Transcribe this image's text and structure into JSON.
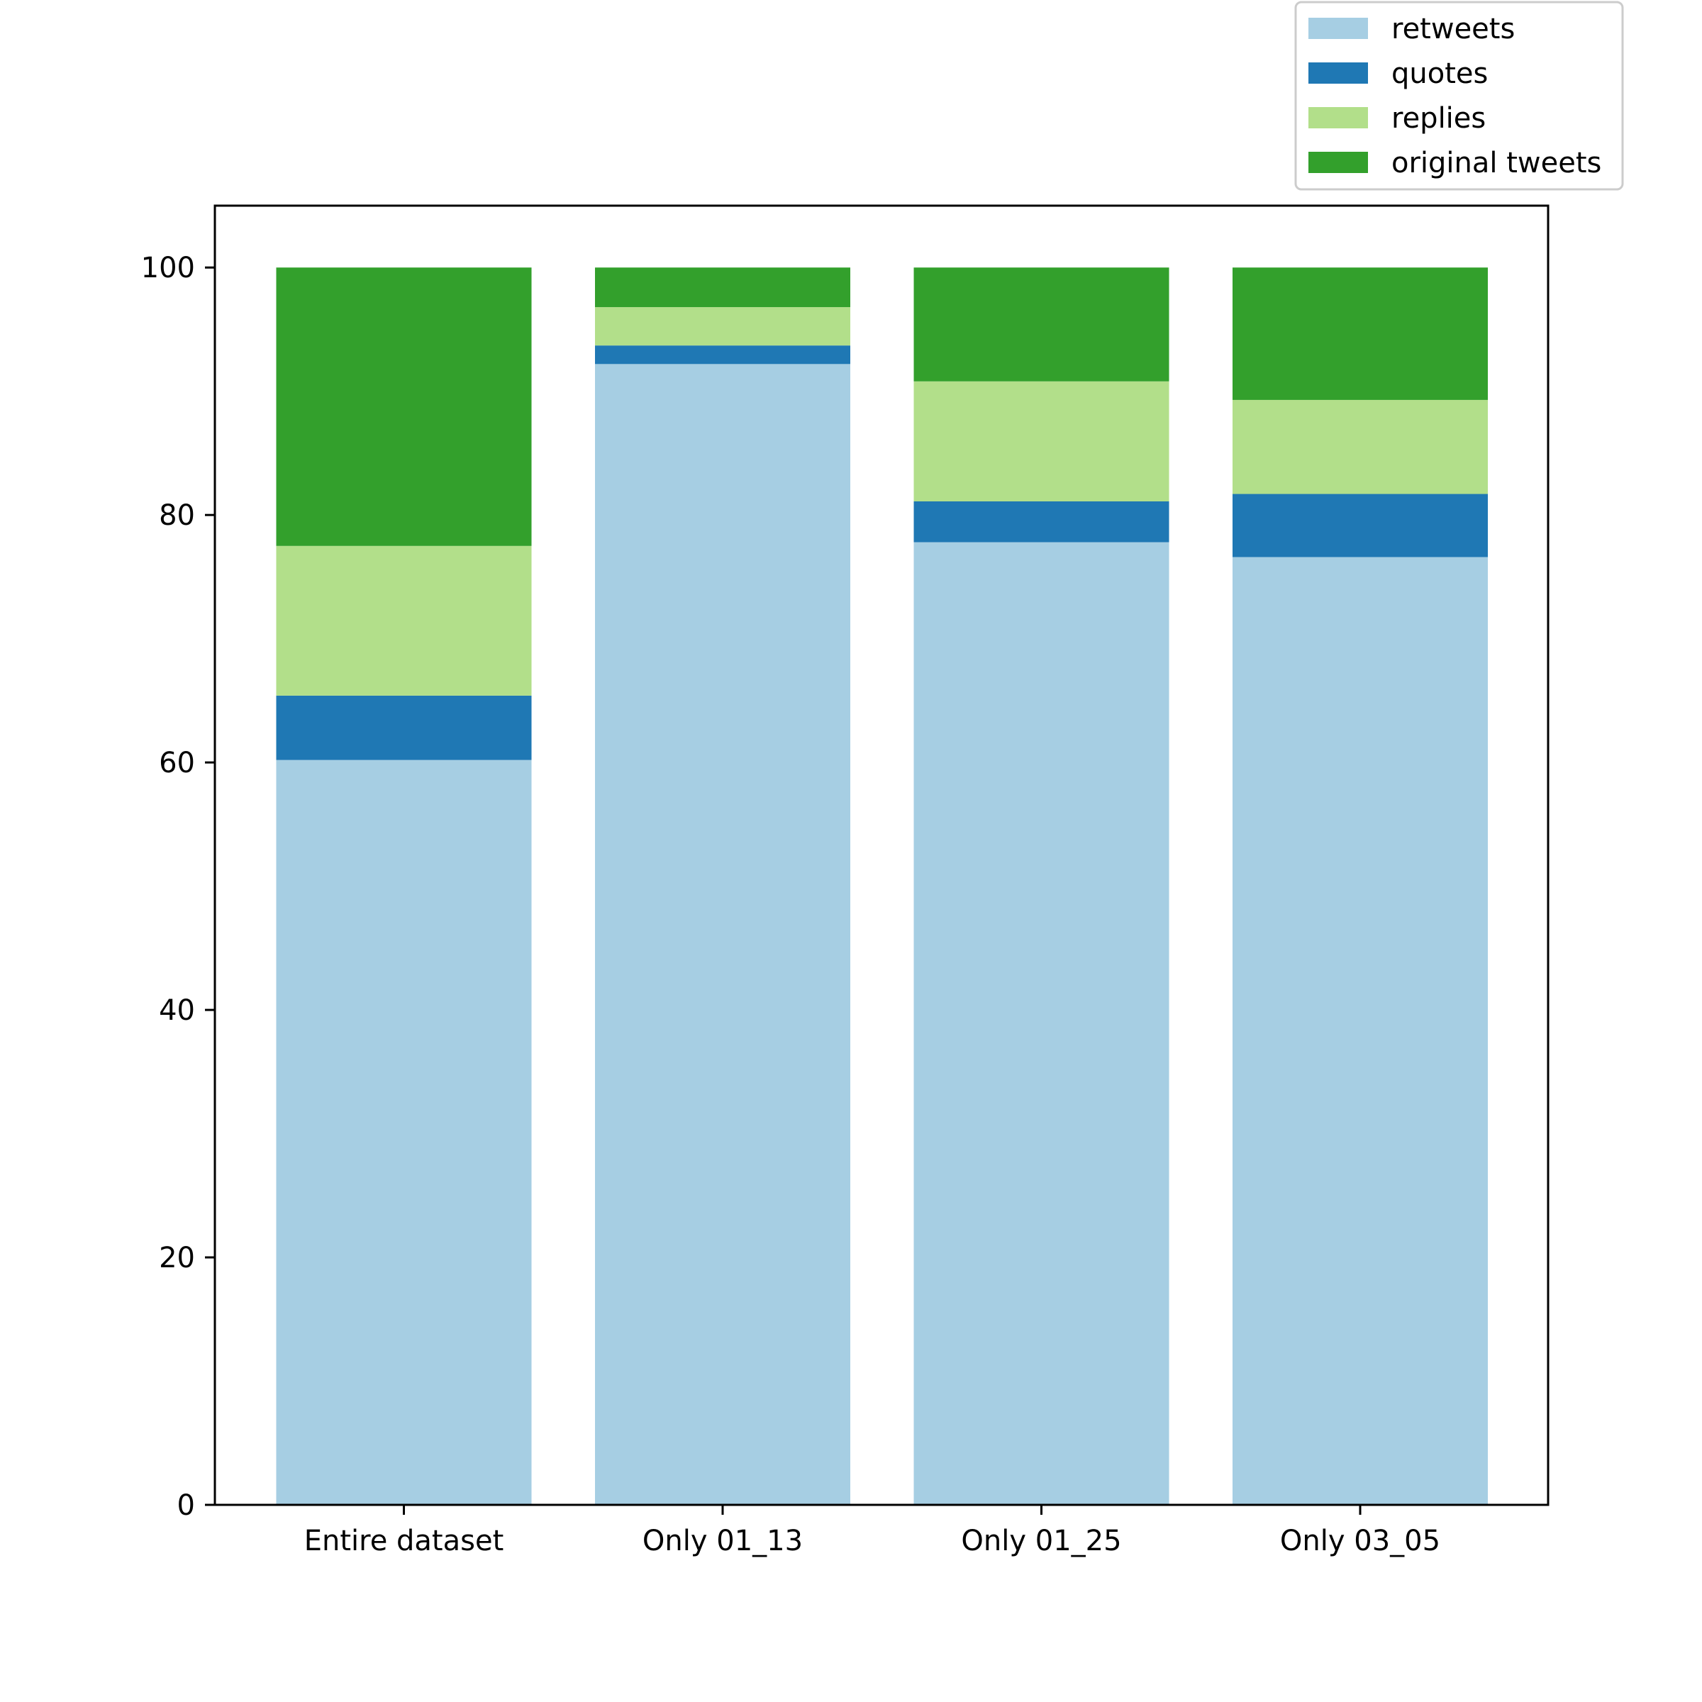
{
  "chart_data": {
    "type": "bar",
    "stacked": true,
    "categories": [
      "Entire dataset",
      "Only 01_13",
      "Only 01_25",
      "Only 03_05"
    ],
    "series": [
      {
        "name": "retweets",
        "color": "#a6cee3",
        "values": [
          60.2,
          92.2,
          77.8,
          76.6
        ]
      },
      {
        "name": "quotes",
        "color": "#1f78b4",
        "values": [
          5.2,
          1.5,
          3.3,
          5.1
        ]
      },
      {
        "name": "replies",
        "color": "#b2df8a",
        "values": [
          12.1,
          3.1,
          9.7,
          7.6
        ]
      },
      {
        "name": "original tweets",
        "color": "#33a02c",
        "values": [
          22.5,
          3.2,
          9.2,
          10.7
        ]
      }
    ],
    "title": "",
    "xlabel": "",
    "ylabel": "",
    "ylim": [
      0,
      105
    ],
    "yticks": [
      "0",
      "20",
      "40",
      "60",
      "80",
      "100"
    ],
    "grid": false,
    "legend_position": "upper-right, above plot"
  }
}
